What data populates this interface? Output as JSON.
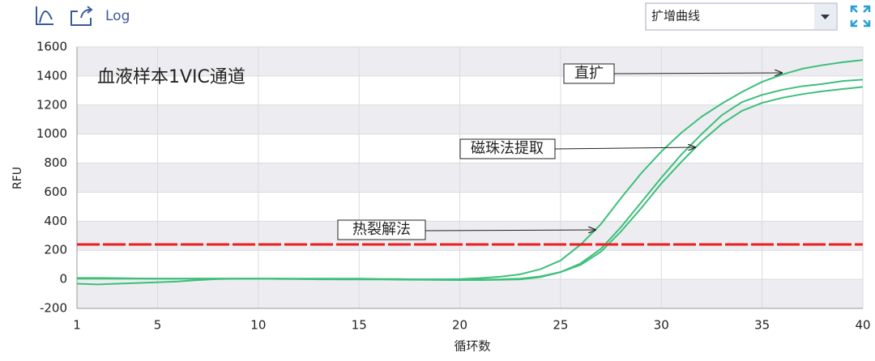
{
  "toolbar": {
    "log_button": "Log",
    "dropdown": "扩增曲线"
  },
  "chart_data": {
    "type": "line",
    "title": "血液样本1VIC通道",
    "x_label": "循环数",
    "y_label": "RFU",
    "x": [
      1,
      2,
      3,
      4,
      5,
      6,
      7,
      8,
      9,
      10,
      11,
      12,
      13,
      14,
      15,
      16,
      17,
      18,
      19,
      20,
      21,
      22,
      23,
      24,
      25,
      26,
      27,
      28,
      29,
      30,
      31,
      32,
      33,
      34,
      35,
      36,
      37,
      38,
      39,
      40
    ],
    "series": [
      {
        "color": "#3dbf7a",
        "values": [
          10,
          10,
          8,
          6,
          5,
          5,
          5,
          5,
          5,
          5,
          3,
          2,
          0,
          0,
          0,
          0,
          0,
          0,
          0,
          2,
          8,
          18,
          35,
          70,
          130,
          240,
          380,
          560,
          730,
          880,
          1010,
          1120,
          1210,
          1290,
          1360,
          1410,
          1450,
          1475,
          1495,
          1510
        ]
      },
      {
        "color": "#3dbf7a",
        "values": [
          -30,
          -35,
          -30,
          -25,
          -20,
          -15,
          -5,
          2,
          5,
          5,
          5,
          5,
          5,
          5,
          5,
          3,
          2,
          0,
          0,
          -2,
          -2,
          0,
          5,
          20,
          50,
          110,
          210,
          360,
          530,
          700,
          860,
          1000,
          1130,
          1220,
          1270,
          1305,
          1330,
          1345,
          1365,
          1375
        ]
      },
      {
        "color": "#3dbf7a",
        "values": [
          5,
          5,
          5,
          5,
          5,
          5,
          5,
          5,
          5,
          5,
          5,
          3,
          2,
          0,
          0,
          0,
          -2,
          -3,
          -4,
          -5,
          -5,
          -3,
          0,
          15,
          50,
          100,
          190,
          330,
          490,
          660,
          810,
          950,
          1070,
          1160,
          1215,
          1250,
          1275,
          1295,
          1310,
          1325
        ]
      }
    ],
    "threshold": {
      "value": 240,
      "color": "#ee1c1c"
    },
    "annotations": [
      "直扩",
      "磁珠法提取",
      "热裂解法"
    ],
    "xlim": [
      1,
      40
    ],
    "xticks": [
      1,
      5,
      10,
      15,
      20,
      25,
      30,
      35,
      40
    ],
    "ylim": [
      -200,
      1600
    ],
    "yticks": [
      -200,
      0,
      200,
      400,
      600,
      800,
      1000,
      1200,
      1400,
      1600
    ],
    "grid": true
  }
}
